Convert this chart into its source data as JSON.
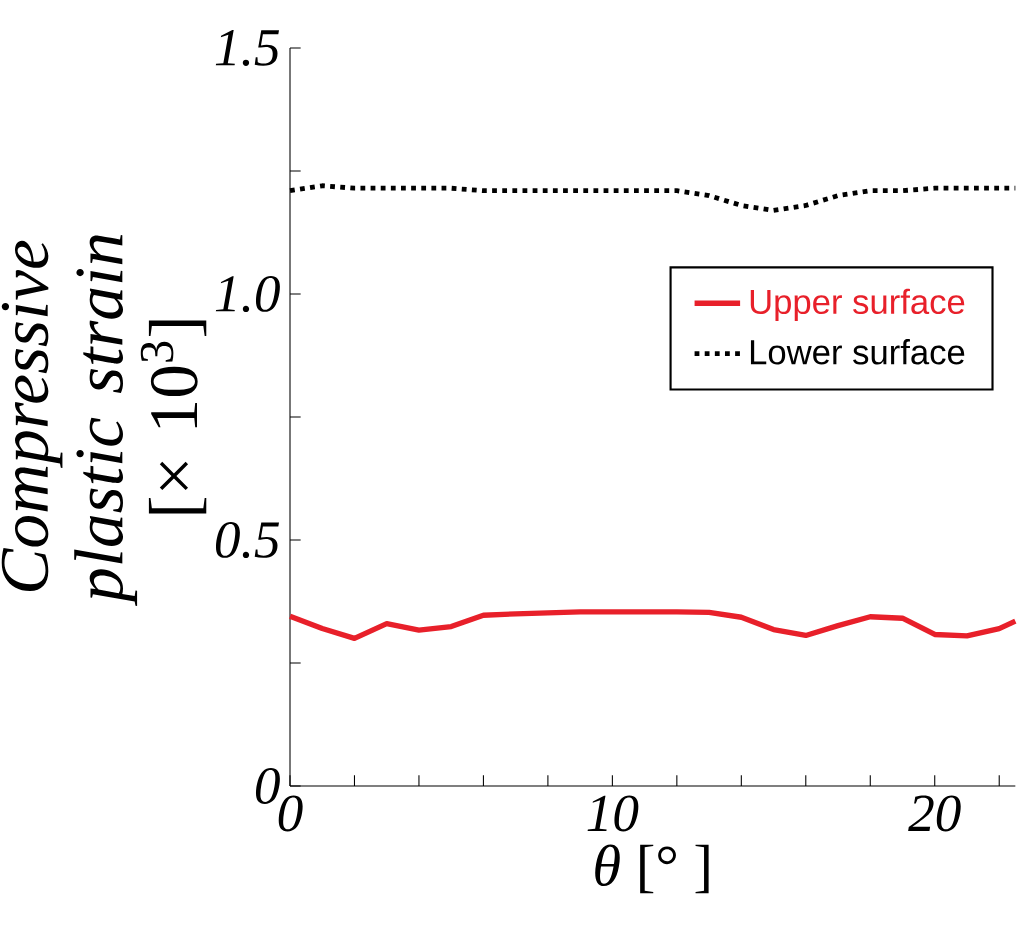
{
  "chart_data": {
    "type": "line",
    "xlabel": "*θ* [°  ]",
    "ylabel": "*Compressive plastic strain* [× 10$^{3}$]",
    "x": [
      0,
      1,
      2,
      3,
      4,
      5,
      6,
      7,
      8,
      9,
      10,
      11,
      12,
      13,
      14,
      15,
      16,
      17,
      18,
      19,
      20,
      21,
      22,
      22.5
    ],
    "series": [
      {
        "name": "Upper surface",
        "color": "#e8202a",
        "line_style": "solid",
        "values": [
          0.345,
          0.32,
          0.3,
          0.33,
          0.317,
          0.324,
          0.347,
          0.35,
          0.352,
          0.354,
          0.354,
          0.354,
          0.354,
          0.353,
          0.343,
          0.318,
          0.306,
          0.326,
          0.344,
          0.341,
          0.308,
          0.305,
          0.32,
          0.335
        ]
      },
      {
        "name": "Lower surface",
        "color": "#000000",
        "line_style": "dotted",
        "values": [
          1.21,
          1.22,
          1.215,
          1.215,
          1.215,
          1.215,
          1.21,
          1.21,
          1.21,
          1.21,
          1.21,
          1.21,
          1.21,
          1.2,
          1.18,
          1.17,
          1.18,
          1.2,
          1.21,
          1.21,
          1.215,
          1.215,
          1.215,
          1.215
        ]
      }
    ],
    "xlim": [
      0,
      22.5
    ],
    "ylim": [
      0,
      1.5
    ],
    "xticks": [
      0,
      {
        "value": 2,
        "label": null
      },
      {
        "value": 4,
        "label": null
      },
      {
        "value": 6,
        "label": null
      },
      {
        "value": 8,
        "label": null
      },
      10,
      {
        "value": 12,
        "label": null
      },
      {
        "value": 14,
        "label": null
      },
      {
        "value": 16,
        "label": null
      },
      {
        "value": 18,
        "label": null
      },
      20,
      {
        "value": 22,
        "label": null
      }
    ],
    "yticks": [
      0,
      {
        "value": 0.25,
        "label": null
      },
      {
        "value": 0.5,
        "label": "0.5"
      },
      {
        "value": 0.75,
        "label": null
      },
      {
        "value": 1.0,
        "label": "1.0"
      },
      {
        "value": 1.25,
        "label": null
      },
      {
        "value": 1.5,
        "label": "1.5"
      }
    ],
    "legend": "right",
    "grid": false
  }
}
